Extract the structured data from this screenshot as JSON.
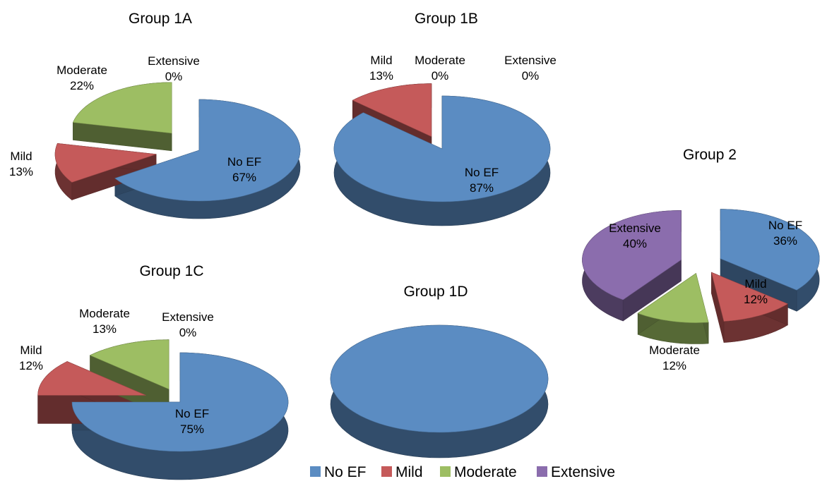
{
  "chart_data": [
    {
      "type": "pie",
      "title": "Group 1A",
      "slices": [
        {
          "category": "No EF",
          "value": 67,
          "label": "67%"
        },
        {
          "category": "Mild",
          "value": 13,
          "label": "13%"
        },
        {
          "category": "Moderate",
          "value": 22,
          "label": "22%"
        },
        {
          "category": "Extensive",
          "value": 0,
          "label": "0%"
        }
      ]
    },
    {
      "type": "pie",
      "title": "Group 1B",
      "slices": [
        {
          "category": "No EF",
          "value": 87,
          "label": "87%"
        },
        {
          "category": "Mild",
          "value": 13,
          "label": "13%"
        },
        {
          "category": "Moderate",
          "value": 0,
          "label": "0%"
        },
        {
          "category": "Extensive",
          "value": 0,
          "label": "0%"
        }
      ]
    },
    {
      "type": "pie",
      "title": "Group 1C",
      "slices": [
        {
          "category": "No EF",
          "value": 75,
          "label": "75%"
        },
        {
          "category": "Mild",
          "value": 12,
          "label": "12%"
        },
        {
          "category": "Moderate",
          "value": 13,
          "label": "13%"
        },
        {
          "category": "Extensive",
          "value": 0,
          "label": "0%"
        }
      ]
    },
    {
      "type": "pie",
      "title": "Group 1D",
      "slices": [
        {
          "category": "No EF",
          "value": 100,
          "label": ""
        }
      ]
    },
    {
      "type": "pie",
      "title": "Group 2",
      "slices": [
        {
          "category": "No EF",
          "value": 36,
          "label": "36%"
        },
        {
          "category": "Mild",
          "value": 12,
          "label": "12%"
        },
        {
          "category": "Moderate",
          "value": 12,
          "label": "12%"
        },
        {
          "category": "Extensive",
          "value": 40,
          "label": "40%"
        }
      ]
    }
  ],
  "legend": {
    "placement": "bottom",
    "entries": [
      {
        "label": "No EF",
        "color": "#5B8CC2"
      },
      {
        "label": "Mild",
        "color": "#C55A5A"
      },
      {
        "label": "Moderate",
        "color": "#9DBE63"
      },
      {
        "label": "Extensive",
        "color": "#8B6DAD"
      }
    ]
  }
}
